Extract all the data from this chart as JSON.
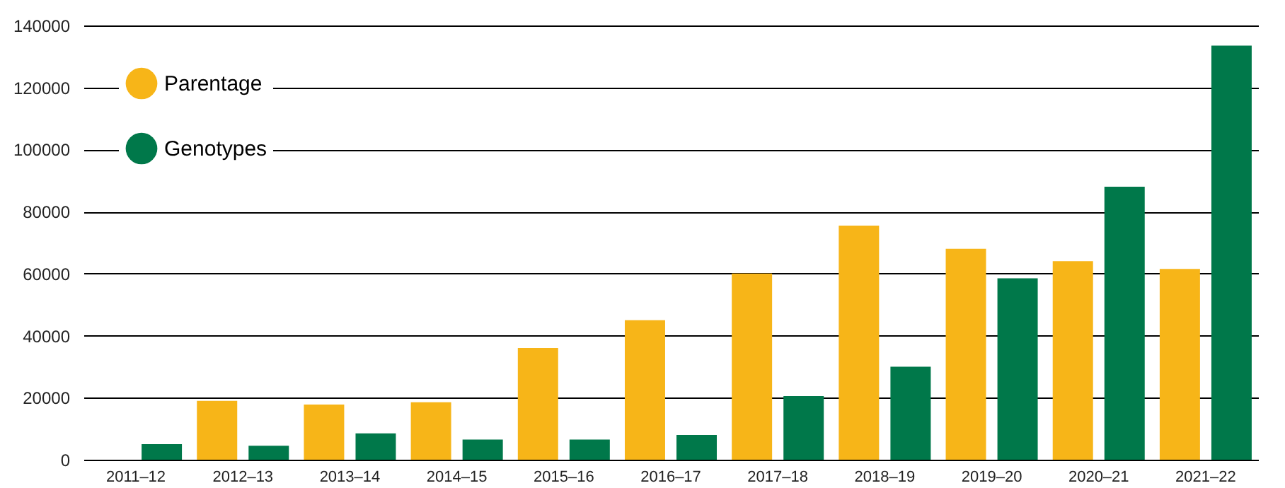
{
  "chart_data": {
    "type": "bar",
    "categories": [
      "2011–12",
      "2012–13",
      "2013–14",
      "2014–15",
      "2015–16",
      "2016–17",
      "2017–18",
      "2018–19",
      "2019–20",
      "2020–21",
      "2021–22"
    ],
    "series": [
      {
        "name": "Parentage",
        "color": "#f7b518",
        "values": [
          null,
          19000,
          17800,
          18500,
          36000,
          45000,
          60000,
          75500,
          68000,
          64000,
          61500
        ]
      },
      {
        "name": "Genotypes",
        "color": "#00784a",
        "values": [
          5000,
          4500,
          8500,
          6500,
          6500,
          8000,
          20500,
          30000,
          58500,
          88000,
          133500
        ]
      }
    ],
    "ylim": [
      0,
      140000
    ],
    "yticks": [
      0,
      20000,
      40000,
      60000,
      80000,
      100000,
      120000,
      140000
    ],
    "grid": "y",
    "legend": "top left"
  }
}
